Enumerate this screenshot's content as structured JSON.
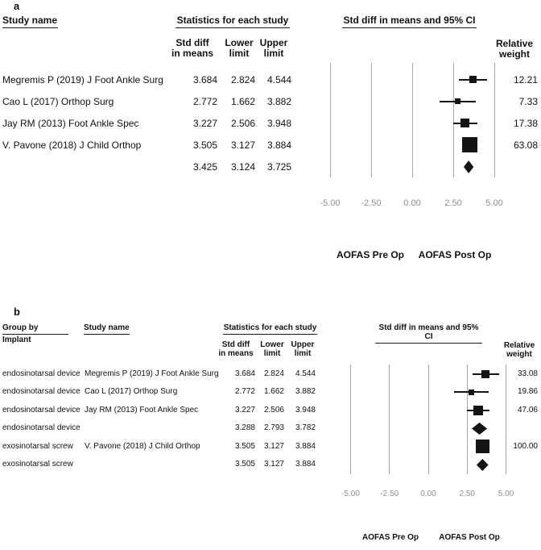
{
  "figure": {
    "background": "#ffffff",
    "text_color": "#141414",
    "gridline_color": "#a9a9a9",
    "axis_label_color": "#8f8f8f",
    "marker_color": "#141414"
  },
  "chart_data": [
    {
      "type": "forest",
      "panel_label": "a",
      "headers": {
        "study_name": "Study name",
        "stats": "Statistics for each study",
        "ci": "Std diff in means and 95% CI",
        "col_std": "Std diff\nin means",
        "col_lower": "Lower\nlimit",
        "col_upper": "Upper\nlimit",
        "rel_weight": "Relative\nweight"
      },
      "rows": [
        {
          "kind": "study",
          "study": "Megremis P (2019) J Foot Ankle Surg",
          "std": "3.684",
          "lower": "2.824",
          "upper": "4.544",
          "weight": "12.21"
        },
        {
          "kind": "study",
          "study": "Cao L (2017) Orthop Surg",
          "std": "2.772",
          "lower": "1.662",
          "upper": "3.882",
          "weight": "7.33"
        },
        {
          "kind": "study",
          "study": "Jay RM (2013) Foot Ankle Spec",
          "std": "3.227",
          "lower": "2.506",
          "upper": "3.948",
          "weight": "17.38"
        },
        {
          "kind": "study",
          "study": "V. Pavone (2018) J Child Orthop",
          "std": "3.505",
          "lower": "3.127",
          "upper": "3.884",
          "weight": "63.08"
        },
        {
          "kind": "summary",
          "study": "",
          "std": "3.425",
          "lower": "3.124",
          "upper": "3.725",
          "weight": ""
        }
      ],
      "axis": {
        "tick_labels": [
          "-5.00",
          "-2.50",
          "0.00",
          "2.50",
          "5.00"
        ],
        "tick_values": [
          -5,
          -2.5,
          0,
          2.5,
          5
        ],
        "xlim": [
          -5.5,
          5.5
        ]
      },
      "footer": {
        "left_label": "AOFAS Pre Op",
        "right_label": "AOFAS Post Op"
      }
    },
    {
      "type": "forest",
      "panel_label": "b",
      "headers": {
        "group_line1": "Group by",
        "group_line2": "Implant",
        "study_name": "Study name",
        "stats": "Statistics for each study",
        "ci": "Std diff in means and 95% CI",
        "col_std": "Std diff\nin means",
        "col_lower": "Lower\nlimit",
        "col_upper": "Upper\nlimit",
        "rel_weight": "Relative\nweight"
      },
      "rows": [
        {
          "kind": "study",
          "group": "endosinotarsal device",
          "study": "Megremis P (2019) J Foot Ankle Surg",
          "std": "3.684",
          "lower": "2.824",
          "upper": "4.544",
          "weight": "33.08"
        },
        {
          "kind": "study",
          "group": "endosinotarsal device",
          "study": "Cao L (2017) Orthop Surg",
          "std": "2.772",
          "lower": "1.662",
          "upper": "3.882",
          "weight": "19.86"
        },
        {
          "kind": "study",
          "group": "endosinotarsal device",
          "study": "Jay RM (2013) Foot Ankle Spec",
          "std": "3.227",
          "lower": "2.506",
          "upper": "3.948",
          "weight": "47.06"
        },
        {
          "kind": "summary",
          "group": "endosinotarsal device",
          "study": "",
          "std": "3.288",
          "lower": "2.793",
          "upper": "3.782",
          "weight": ""
        },
        {
          "kind": "study",
          "group": "exosinotarsal screw",
          "study": "V. Pavone (2018) J Child Orthop",
          "std": "3.505",
          "lower": "3.127",
          "upper": "3.884",
          "weight": "100.00"
        },
        {
          "kind": "summary",
          "group": "exosinotarsal screw",
          "study": "",
          "std": "3.505",
          "lower": "3.127",
          "upper": "3.884",
          "weight": ""
        }
      ],
      "axis": {
        "tick_labels": [
          "-5.00",
          "-2.50",
          "0.00",
          "2.50",
          "5.00"
        ],
        "tick_values": [
          -5,
          -2.5,
          0,
          2.5,
          5
        ],
        "xlim": [
          -5.5,
          5.5
        ]
      },
      "footer": {
        "left_label": "AOFAS Pre Op",
        "right_label": "AOFAS Post Op"
      }
    }
  ]
}
